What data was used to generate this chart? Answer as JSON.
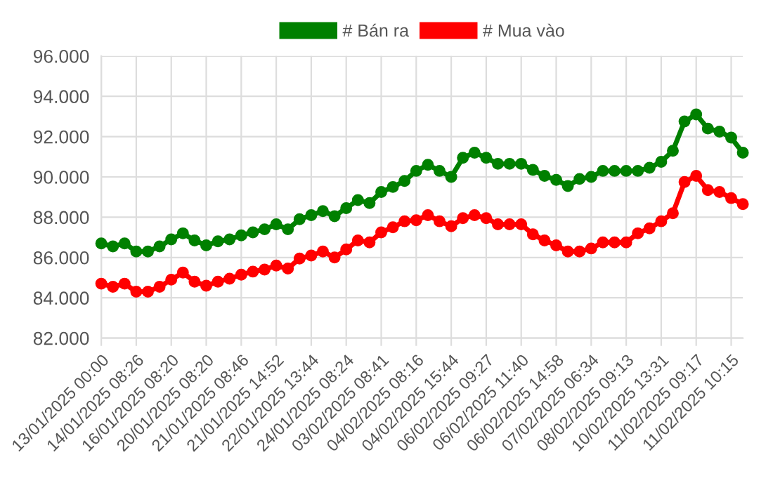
{
  "chart_data": {
    "type": "line",
    "categories": [
      "13/01/2025 00:00",
      null,
      null,
      "14/01/2025 08:26",
      null,
      null,
      "16/01/2025 08:20",
      null,
      null,
      "20/01/2025 08:20",
      null,
      null,
      "21/01/2025 08:46",
      null,
      null,
      "21/01/2025 14:52",
      null,
      null,
      "22/01/2025 13:44",
      null,
      null,
      "24/01/2025 08:24",
      null,
      null,
      "03/02/2025 08:41",
      null,
      null,
      "04/02/2025 08:16",
      null,
      null,
      "04/02/2025 15:44",
      null,
      null,
      "06/02/2025 09:27",
      null,
      null,
      "06/02/2025 11:40",
      null,
      null,
      "06/02/2025 14:58",
      null,
      null,
      "07/02/2025 06:34",
      null,
      null,
      "08/02/2025 09:13",
      null,
      null,
      "10/02/2025 13:31",
      null,
      null,
      "11/02/2025 09:17",
      null,
      null,
      "11/02/2025 10:15",
      null
    ],
    "series": [
      {
        "name": "# Bán ra",
        "color": "#008000",
        "values": [
          86700,
          86550,
          86700,
          86300,
          86300,
          86550,
          86900,
          87200,
          86850,
          86600,
          86800,
          86900,
          87100,
          87250,
          87400,
          87650,
          87400,
          87900,
          88100,
          88300,
          88050,
          88450,
          88850,
          88700,
          89250,
          89500,
          89800,
          90300,
          90600,
          90300,
          90000,
          90950,
          91200,
          90950,
          90650,
          90650,
          90650,
          90350,
          90050,
          89850,
          89550,
          89900,
          90000,
          90300,
          90300,
          90300,
          90300,
          90450,
          90750,
          91300,
          92750,
          93100,
          92400,
          92250,
          91950,
          91200
        ]
      },
      {
        "name": "# Mua vào",
        "color": "#ff0000",
        "values": [
          84700,
          84550,
          84700,
          84300,
          84300,
          84550,
          84900,
          85250,
          84800,
          84600,
          84800,
          84950,
          85150,
          85300,
          85400,
          85600,
          85450,
          85950,
          86100,
          86300,
          86000,
          86400,
          86850,
          86750,
          87250,
          87500,
          87800,
          87850,
          88100,
          87800,
          87550,
          87950,
          88100,
          87950,
          87650,
          87650,
          87650,
          87150,
          86850,
          86600,
          86300,
          86300,
          86450,
          86750,
          86750,
          86750,
          87200,
          87450,
          87800,
          88200,
          89750,
          90050,
          89350,
          89250,
          88950,
          88650
        ]
      }
    ],
    "ylim": [
      82000,
      96000
    ],
    "yticks": [
      {
        "value": 82000,
        "label": "82.000"
      },
      {
        "value": 84000,
        "label": "84.000"
      },
      {
        "value": 86000,
        "label": "86.000"
      },
      {
        "value": 88000,
        "label": "88.000"
      },
      {
        "value": 90000,
        "label": "90.000"
      },
      {
        "value": 92000,
        "label": "92.000"
      },
      {
        "value": 94000,
        "label": "94.000"
      },
      {
        "value": 96000,
        "label": "96.000"
      }
    ],
    "grid": true,
    "legend": "top",
    "marker": "circle",
    "line_style": "solid"
  }
}
